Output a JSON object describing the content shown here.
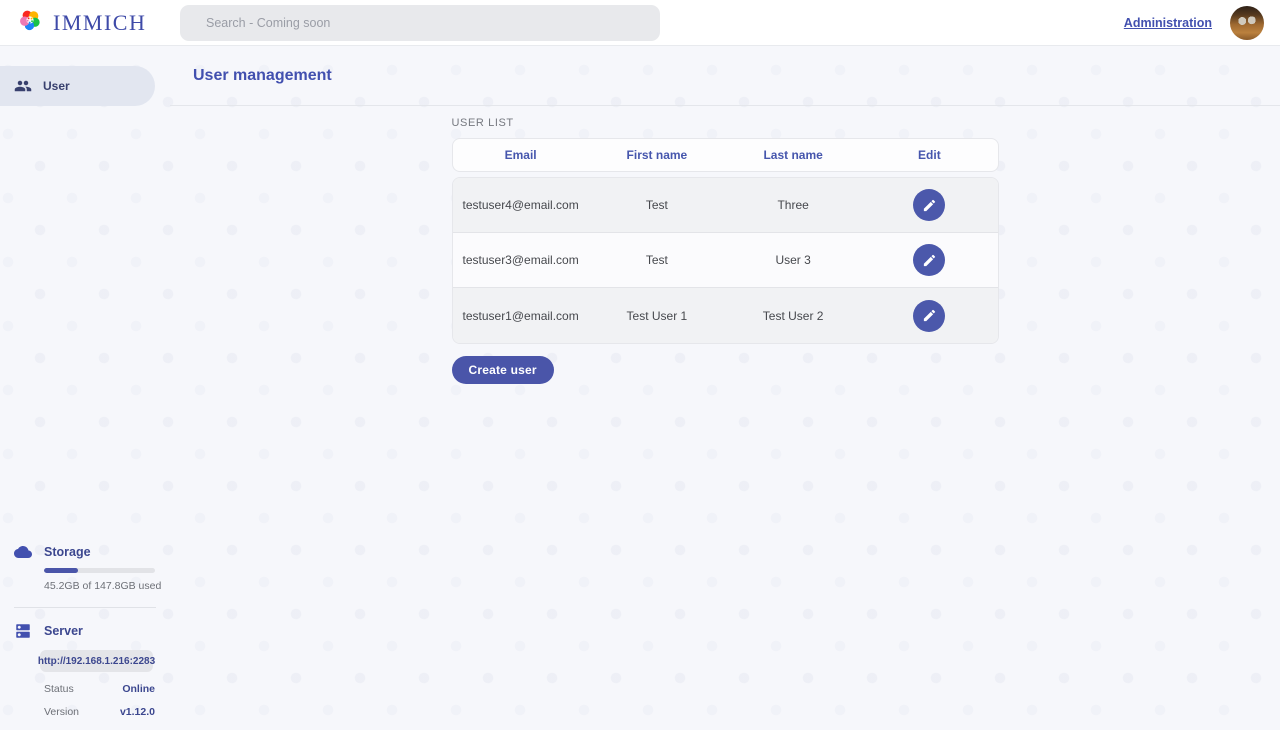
{
  "header": {
    "brand": "IMMICH",
    "search_placeholder": "Search - Coming soon",
    "admin_link": "Administration"
  },
  "sidebar": {
    "items": [
      {
        "label": "User",
        "active": true
      }
    ],
    "storage": {
      "title": "Storage",
      "usage_text": "45.2GB of 147.8GB used",
      "percent_used": 31
    },
    "server": {
      "title": "Server",
      "url": "http://192.168.1.216:2283",
      "status_label": "Status",
      "status_value": "Online",
      "version_label": "Version",
      "version_value": "v1.12.0"
    }
  },
  "main": {
    "title": "User management",
    "section_label": "USER LIST",
    "table": {
      "columns": [
        "Email",
        "First name",
        "Last name",
        "Edit"
      ],
      "rows": [
        {
          "email": "testuser4@email.com",
          "first_name": "Test",
          "last_name": "Three"
        },
        {
          "email": "testuser3@email.com",
          "first_name": "Test",
          "last_name": "User 3"
        },
        {
          "email": "testuser1@email.com",
          "first_name": "Test User 1",
          "last_name": "Test User 2"
        }
      ]
    },
    "create_button": "Create user"
  },
  "colors": {
    "accent": "#4250af",
    "logo_petals": [
      "#fa2921",
      "#ffb400",
      "#18c249",
      "#1e83f7",
      "#ed79b5"
    ]
  }
}
